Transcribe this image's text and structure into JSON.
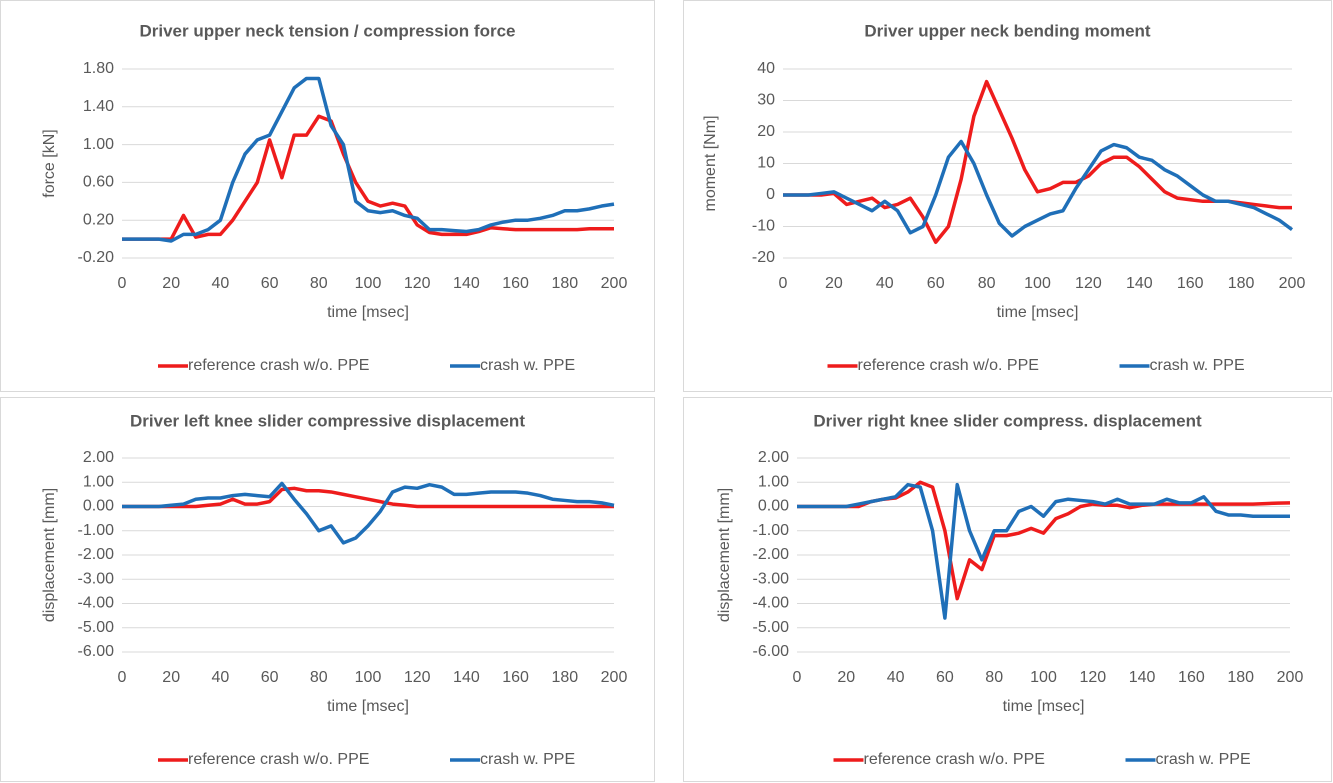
{
  "chart_data": [
    {
      "type": "line",
      "title": "Driver upper neck tension / compression force",
      "xlabel": "time [msec]",
      "ylabel": "force [kN]",
      "x": [
        0,
        5,
        10,
        15,
        20,
        25,
        30,
        35,
        40,
        45,
        50,
        55,
        60,
        65,
        70,
        75,
        80,
        85,
        90,
        95,
        100,
        105,
        110,
        115,
        120,
        125,
        130,
        135,
        140,
        145,
        150,
        155,
        160,
        165,
        170,
        175,
        180,
        185,
        190,
        195,
        200
      ],
      "series": [
        {
          "name": "reference crash w/o. PPE",
          "color": "#ee1c1c",
          "values": [
            0,
            0,
            0,
            0,
            0,
            0.25,
            0.02,
            0.05,
            0.05,
            0.2,
            0.4,
            0.6,
            1.05,
            0.65,
            1.1,
            1.1,
            1.3,
            1.25,
            0.9,
            0.6,
            0.4,
            0.35,
            0.38,
            0.35,
            0.15,
            0.07,
            0.05,
            0.05,
            0.05,
            0.08,
            0.12,
            0.11,
            0.1,
            0.1,
            0.1,
            0.1,
            0.1,
            0.1,
            0.11,
            0.11,
            0.11
          ]
        },
        {
          "name": "crash w. PPE",
          "color": "#1f6fb8",
          "values": [
            0,
            0,
            0,
            0,
            -0.02,
            0.05,
            0.05,
            0.1,
            0.2,
            0.6,
            0.9,
            1.05,
            1.1,
            1.35,
            1.6,
            1.7,
            1.7,
            1.2,
            1.0,
            0.4,
            0.3,
            0.28,
            0.3,
            0.25,
            0.22,
            0.1,
            0.1,
            0.09,
            0.08,
            0.1,
            0.15,
            0.18,
            0.2,
            0.2,
            0.22,
            0.25,
            0.3,
            0.3,
            0.32,
            0.35,
            0.37
          ]
        }
      ],
      "xlim": [
        0,
        200
      ],
      "xticks": [
        0,
        20,
        40,
        60,
        80,
        100,
        120,
        140,
        160,
        180,
        200
      ],
      "ylim": [
        -0.2,
        1.8
      ],
      "yticks": [
        {
          "value": -0.2,
          "label": "-0.20"
        },
        {
          "value": 0.2,
          "label": "0.20"
        },
        {
          "value": 0.6,
          "label": "0.60"
        },
        {
          "value": 1.0,
          "label": "1.00"
        },
        {
          "value": 1.4,
          "label": "1.40"
        },
        {
          "value": 1.8,
          "label": "1.80"
        }
      ],
      "grid": true,
      "legend": "bottom"
    },
    {
      "type": "line",
      "title": "Driver upper neck bending moment",
      "xlabel": "time [msec]",
      "ylabel": "moment [Nm]",
      "x": [
        0,
        5,
        10,
        15,
        20,
        25,
        30,
        35,
        40,
        45,
        50,
        55,
        60,
        65,
        70,
        75,
        80,
        85,
        90,
        95,
        100,
        105,
        110,
        115,
        120,
        125,
        130,
        135,
        140,
        145,
        150,
        155,
        160,
        165,
        170,
        175,
        180,
        185,
        190,
        195,
        200
      ],
      "series": [
        {
          "name": "reference crash w/o. PPE",
          "color": "#ee1c1c",
          "values": [
            0,
            0,
            0,
            0,
            0.5,
            -3,
            -2,
            -1,
            -4,
            -3,
            -1,
            -7,
            -15,
            -10,
            5,
            25,
            36,
            27,
            18,
            8,
            1,
            2,
            4,
            4,
            6,
            10,
            12,
            12,
            9,
            5,
            1,
            -1,
            -1.5,
            -2,
            -2,
            -2,
            -2.5,
            -3,
            -3.5,
            -4,
            -4
          ]
        },
        {
          "name": "crash w. PPE",
          "color": "#1f6fb8",
          "values": [
            0,
            0,
            0,
            0.5,
            1,
            -1,
            -3,
            -5,
            -2,
            -5,
            -12,
            -10,
            0,
            12,
            17,
            10,
            0,
            -9,
            -13,
            -10,
            -8,
            -6,
            -5,
            2,
            8,
            14,
            16,
            15,
            12,
            11,
            8,
            6,
            3,
            0,
            -2,
            -2,
            -3,
            -4,
            -6,
            -8,
            -11
          ]
        }
      ],
      "xlim": [
        0,
        200
      ],
      "xticks": [
        0,
        20,
        40,
        60,
        80,
        100,
        120,
        140,
        160,
        180,
        200
      ],
      "ylim": [
        -20,
        40
      ],
      "yticks": [
        -20,
        -10,
        0,
        10,
        20,
        30,
        40
      ],
      "grid": true,
      "legend": "bottom"
    },
    {
      "type": "line",
      "title": "Driver left knee slider compressive displacement",
      "xlabel": "time [msec]",
      "ylabel": "displacement [mm]",
      "x": [
        0,
        5,
        10,
        15,
        20,
        25,
        30,
        35,
        40,
        45,
        50,
        55,
        60,
        65,
        70,
        75,
        80,
        85,
        90,
        95,
        100,
        105,
        110,
        115,
        120,
        125,
        130,
        135,
        140,
        145,
        150,
        155,
        160,
        165,
        170,
        175,
        180,
        185,
        190,
        195,
        200
      ],
      "series": [
        {
          "name": "reference crash w/o. PPE",
          "color": "#ee1c1c",
          "values": [
            0,
            0,
            0,
            0,
            0,
            0,
            0,
            0.05,
            0.1,
            0.3,
            0.1,
            0.1,
            0.2,
            0.7,
            0.75,
            0.65,
            0.65,
            0.6,
            0.5,
            0.4,
            0.3,
            0.2,
            0.1,
            0.05,
            0,
            0,
            0,
            0,
            0,
            0,
            0,
            0,
            0,
            0,
            0,
            0,
            0,
            0,
            0,
            0,
            0
          ]
        },
        {
          "name": "crash w. PPE",
          "color": "#1f6fb8",
          "values": [
            0,
            0,
            0,
            0,
            0.05,
            0.1,
            0.3,
            0.35,
            0.35,
            0.45,
            0.5,
            0.45,
            0.4,
            0.95,
            0.3,
            -0.3,
            -1.0,
            -0.8,
            -1.5,
            -1.3,
            -0.8,
            -0.2,
            0.6,
            0.8,
            0.75,
            0.9,
            0.8,
            0.5,
            0.5,
            0.55,
            0.6,
            0.6,
            0.6,
            0.55,
            0.45,
            0.3,
            0.25,
            0.2,
            0.2,
            0.15,
            0.05
          ]
        }
      ],
      "xlim": [
        0,
        200
      ],
      "xticks": [
        0,
        20,
        40,
        60,
        80,
        100,
        120,
        140,
        160,
        180,
        200
      ],
      "ylim": [
        -6,
        2
      ],
      "yticks": [
        {
          "value": -6,
          "label": "-6.00"
        },
        {
          "value": -5,
          "label": "-5.00"
        },
        {
          "value": -4,
          "label": "-4.00"
        },
        {
          "value": -3,
          "label": "-3.00"
        },
        {
          "value": -2,
          "label": "-2.00"
        },
        {
          "value": -1,
          "label": "-1.00"
        },
        {
          "value": 0,
          "label": "0.00"
        },
        {
          "value": 1,
          "label": "1.00"
        },
        {
          "value": 2,
          "label": "2.00"
        }
      ],
      "grid": true,
      "legend": "bottom"
    },
    {
      "type": "line",
      "title": "Driver right knee slider compress. displacement",
      "xlabel": "time [msec]",
      "ylabel": "displacement [mm]",
      "x": [
        0,
        5,
        10,
        15,
        20,
        25,
        30,
        35,
        40,
        45,
        50,
        55,
        60,
        65,
        70,
        75,
        80,
        85,
        90,
        95,
        100,
        105,
        110,
        115,
        120,
        125,
        130,
        135,
        140,
        145,
        150,
        155,
        160,
        165,
        170,
        175,
        180,
        185,
        190,
        195,
        200
      ],
      "series": [
        {
          "name": "reference crash w/o. PPE",
          "color": "#ee1c1c",
          "values": [
            0,
            0,
            0,
            0,
            0,
            0,
            0.2,
            0.3,
            0.35,
            0.6,
            1.0,
            0.8,
            -1.0,
            -3.8,
            -2.2,
            -2.6,
            -1.2,
            -1.2,
            -1.1,
            -0.9,
            -1.1,
            -0.5,
            -0.3,
            0,
            0.1,
            0.05,
            0.05,
            -0.05,
            0.05,
            0.1,
            0.1,
            0.1,
            0.1,
            0.1,
            0.1,
            0.1,
            0.1,
            0.1,
            0.12,
            0.14,
            0.15
          ]
        },
        {
          "name": "crash w. PPE",
          "color": "#1f6fb8",
          "values": [
            0,
            0,
            0,
            0,
            0,
            0.1,
            0.2,
            0.3,
            0.4,
            0.9,
            0.8,
            -1.0,
            -4.6,
            0.9,
            -1.0,
            -2.2,
            -1.0,
            -1.0,
            -0.2,
            0,
            -0.4,
            0.2,
            0.3,
            0.25,
            0.2,
            0.1,
            0.3,
            0.1,
            0.1,
            0.1,
            0.3,
            0.15,
            0.15,
            0.4,
            -0.2,
            -0.35,
            -0.35,
            -0.4,
            -0.4,
            -0.4,
            -0.4
          ]
        }
      ],
      "xlim": [
        0,
        200
      ],
      "xticks": [
        0,
        20,
        40,
        60,
        80,
        100,
        120,
        140,
        160,
        180,
        200
      ],
      "ylim": [
        -6,
        2
      ],
      "yticks": [
        {
          "value": -6,
          "label": "-6.00"
        },
        {
          "value": -5,
          "label": "-5.00"
        },
        {
          "value": -4,
          "label": "-4.00"
        },
        {
          "value": -3,
          "label": "-3.00"
        },
        {
          "value": -2,
          "label": "-2.00"
        },
        {
          "value": -1,
          "label": "-1.00"
        },
        {
          "value": 0,
          "label": "0.00"
        },
        {
          "value": 1,
          "label": "1.00"
        },
        {
          "value": 2,
          "label": "2.00"
        }
      ],
      "grid": true,
      "legend": "bottom"
    }
  ]
}
